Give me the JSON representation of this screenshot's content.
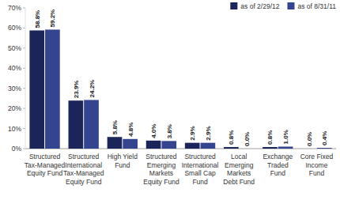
{
  "chart_data": {
    "type": "bar",
    "categories": [
      "Structured Tax-Managed Equity Fund",
      "Structured International Tax-Managed Equity Fund",
      "High Yield Fund",
      "Structured Emerging Markets Equity Fund",
      "Structured International Small Cap Fund",
      "Local Emerging Markets Debt Fund",
      "Exchange Traded Fund",
      "Core Fixed Income Fund"
    ],
    "series": [
      {
        "name": "as of 2/29/12",
        "color": "#1c2559",
        "values": [
          58.8,
          23.9,
          5.8,
          4.0,
          2.9,
          0.8,
          0.8,
          0.0
        ],
        "value_labels": [
          "58.8%",
          "23.9%",
          "5.8%",
          "4.0%",
          "2.9%",
          "0.8%",
          "0.8%",
          "0.0%"
        ]
      },
      {
        "name": "as of 8/31/11",
        "color": "#34448f",
        "values": [
          59.2,
          24.2,
          4.8,
          3.8,
          2.9,
          0.0,
          1.0,
          0.4
        ],
        "value_labels": [
          "59.2%",
          "24.2%",
          "4.8%",
          "3.8%",
          "2.9%",
          "0.0%",
          "1.0%",
          "0.4%"
        ]
      }
    ],
    "ylim": [
      0,
      70
    ],
    "yticks": [
      {
        "value": 0,
        "label": "0%"
      },
      {
        "value": 10,
        "label": "10%"
      },
      {
        "value": 20,
        "label": "20%"
      },
      {
        "value": 30,
        "label": "30%"
      },
      {
        "value": 40,
        "label": "40%"
      },
      {
        "value": 50,
        "label": "50%"
      },
      {
        "value": 60,
        "label": "60%"
      },
      {
        "value": 70,
        "label": "70%"
      }
    ],
    "grid": false,
    "legend": "top-right",
    "data_labels": true
  }
}
